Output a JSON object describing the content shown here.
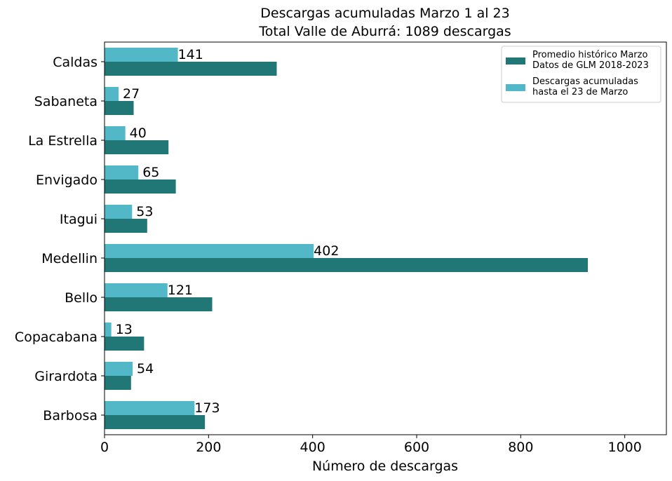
{
  "chart_data": {
    "type": "bar",
    "orientation": "horizontal",
    "title": [
      "Descargas acumuladas Marzo 1 al 23",
      "Total Valle de Aburrá: 1089 descargas"
    ],
    "xlabel": "Número de descargas",
    "ylabel": "",
    "xlim": [
      0,
      1080
    ],
    "xticks": [
      0,
      200,
      400,
      600,
      800,
      1000
    ],
    "categories": [
      "Caldas",
      "Sabaneta",
      "La Estrella",
      "Envigado",
      "Itagui",
      "Medellin",
      "Bello",
      "Copacabana",
      "Girardota",
      "Barbosa"
    ],
    "series": [
      {
        "name": [
          "Promedio histórico Marzo",
          "Datos de GLM 2018-2023"
        ],
        "color": "#217676",
        "values": [
          331,
          56,
          123,
          137,
          82,
          929,
          207,
          76,
          51,
          193
        ]
      },
      {
        "name": [
          "Descargas acumuladas",
          "hasta el 23 de Marzo"
        ],
        "color": "#52b7c7",
        "values": [
          141,
          27,
          40,
          65,
          53,
          402,
          121,
          13,
          54,
          173
        ],
        "show_value_labels": true
      }
    ],
    "legend_position": "top-right",
    "grid": false
  }
}
